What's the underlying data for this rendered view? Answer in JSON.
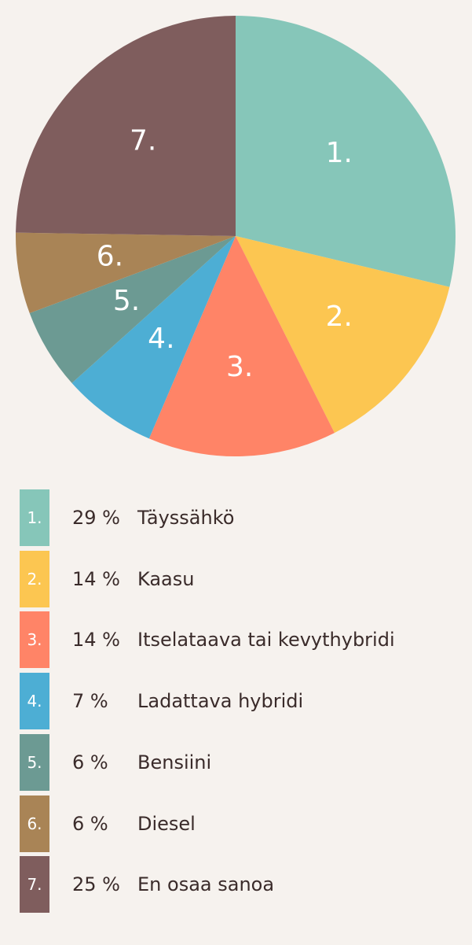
{
  "chart_data": {
    "type": "pie",
    "slices": [
      {
        "number": "1.",
        "percent_label": "29 %",
        "label": "Täyssähkö",
        "value": 29,
        "color": "#86c6b9"
      },
      {
        "number": "2.",
        "percent_label": "14 %",
        "label": "Kaasu",
        "value": 14,
        "color": "#fcc651"
      },
      {
        "number": "3.",
        "percent_label": "14 %",
        "label": "Itselataava tai kevythybridi",
        "value": 14,
        "color": "#ff8467"
      },
      {
        "number": "4.",
        "percent_label": "7 %",
        "label": "Ladattava hybridi",
        "value": 7,
        "color": "#4daed4"
      },
      {
        "number": "5.",
        "percent_label": "6 %",
        "label": "Bensiini",
        "value": 6,
        "color": "#6c9a93"
      },
      {
        "number": "6.",
        "percent_label": "6 %",
        "label": "Diesel",
        "value": 6,
        "color": "#a98456"
      },
      {
        "number": "7.",
        "percent_label": "25 %",
        "label": "En osaa sanoa",
        "value": 25,
        "color": "#7f5d5d"
      }
    ]
  }
}
